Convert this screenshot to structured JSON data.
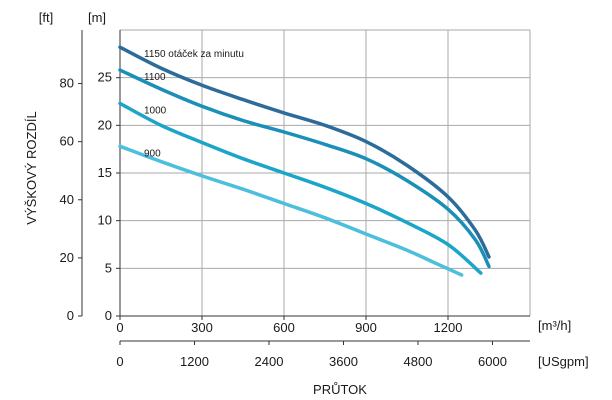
{
  "chart_data": {
    "type": "line",
    "ylabel": "VÝŠKOVÝ ROZDÍL",
    "xlabel": "PRŮTOK",
    "y_unit_ft": "[ft]",
    "y_unit_m": "[m]",
    "x_unit_m3h": "[m³/h]",
    "x_unit_usgpm": "[USgpm]",
    "x_ticks_m3h": [
      "0",
      "300",
      "600",
      "900",
      "1200"
    ],
    "x_ticks_usgpm": [
      "0",
      "1200",
      "2400",
      "3600",
      "4800",
      "6000"
    ],
    "y_ticks_m": [
      "0",
      "5",
      "10",
      "15",
      "20",
      "25"
    ],
    "y_ticks_ft": [
      "0",
      "20",
      "40",
      "60",
      "80"
    ],
    "xlim": [
      0,
      1500
    ],
    "ylim": [
      0,
      30
    ],
    "grid": true,
    "series": [
      {
        "name": "1150 otáček za minutu",
        "color": "#2b6c9b",
        "points": [
          [
            0,
            28.2
          ],
          [
            150,
            26.0
          ],
          [
            300,
            24.2
          ],
          [
            450,
            22.7
          ],
          [
            600,
            21.3
          ],
          [
            750,
            20.0
          ],
          [
            900,
            18.3
          ],
          [
            1050,
            15.8
          ],
          [
            1200,
            12.5
          ],
          [
            1300,
            9.0
          ],
          [
            1350,
            6.2
          ]
        ]
      },
      {
        "name": "1100",
        "color": "#1a8fb8",
        "points": [
          [
            0,
            25.8
          ],
          [
            150,
            23.8
          ],
          [
            300,
            22.0
          ],
          [
            450,
            20.5
          ],
          [
            600,
            19.3
          ],
          [
            750,
            18.0
          ],
          [
            900,
            16.5
          ],
          [
            1050,
            14.2
          ],
          [
            1200,
            11.2
          ],
          [
            1300,
            8.0
          ],
          [
            1350,
            5.2
          ]
        ]
      },
      {
        "name": "1000",
        "color": "#1ba5c8",
        "points": [
          [
            0,
            22.3
          ],
          [
            150,
            20.0
          ],
          [
            300,
            18.2
          ],
          [
            450,
            16.5
          ],
          [
            600,
            15.0
          ],
          [
            750,
            13.5
          ],
          [
            900,
            11.8
          ],
          [
            1050,
            9.8
          ],
          [
            1200,
            7.5
          ],
          [
            1320,
            4.5
          ]
        ]
      },
      {
        "name": "900",
        "color": "#4bbfdc",
        "points": [
          [
            0,
            17.8
          ],
          [
            150,
            16.2
          ],
          [
            300,
            14.7
          ],
          [
            450,
            13.3
          ],
          [
            600,
            11.8
          ],
          [
            750,
            10.3
          ],
          [
            900,
            8.6
          ],
          [
            1050,
            6.9
          ],
          [
            1150,
            5.6
          ],
          [
            1250,
            4.3
          ]
        ]
      }
    ]
  }
}
